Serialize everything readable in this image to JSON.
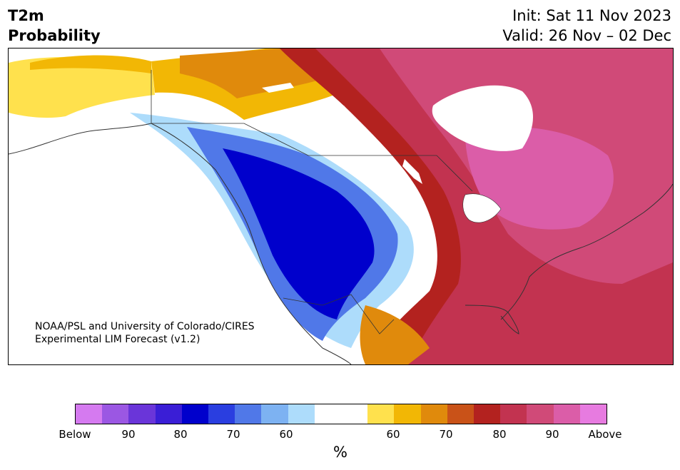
{
  "title": {
    "line1": "T2m",
    "line2": "Probability"
  },
  "valid_info": {
    "init": "Init: Sat 11 Nov 2023",
    "valid": "Valid: 26 Nov – 02 Dec"
  },
  "credit": {
    "line1": "NOAA/PSL and University of Colorado/CIRES",
    "line2": "Experimental LIM Forecast (v1.2)"
  },
  "colorbar": {
    "unit": "%",
    "colors": [
      "#d57af0",
      "#9b57e3",
      "#6a35d9",
      "#3a1ed6",
      "#0000cc",
      "#2a3ee0",
      "#5078e8",
      "#7db2f2",
      "#addcfb",
      "#ffffff",
      "#ffffff",
      "#ffe14d",
      "#f2b705",
      "#e08a0c",
      "#c95218",
      "#b3221f",
      "#c23350",
      "#d04a78",
      "#db5da8",
      "#e77be0"
    ],
    "tick_labels": [
      "Below",
      "90",
      "80",
      "70",
      "60",
      "60",
      "70",
      "80",
      "90",
      "Above"
    ]
  },
  "map": {
    "region": "North America",
    "field": "2 m temperature probability",
    "pattern": "below-normal over western US, above-normal over eastern US and eastern Canada"
  }
}
